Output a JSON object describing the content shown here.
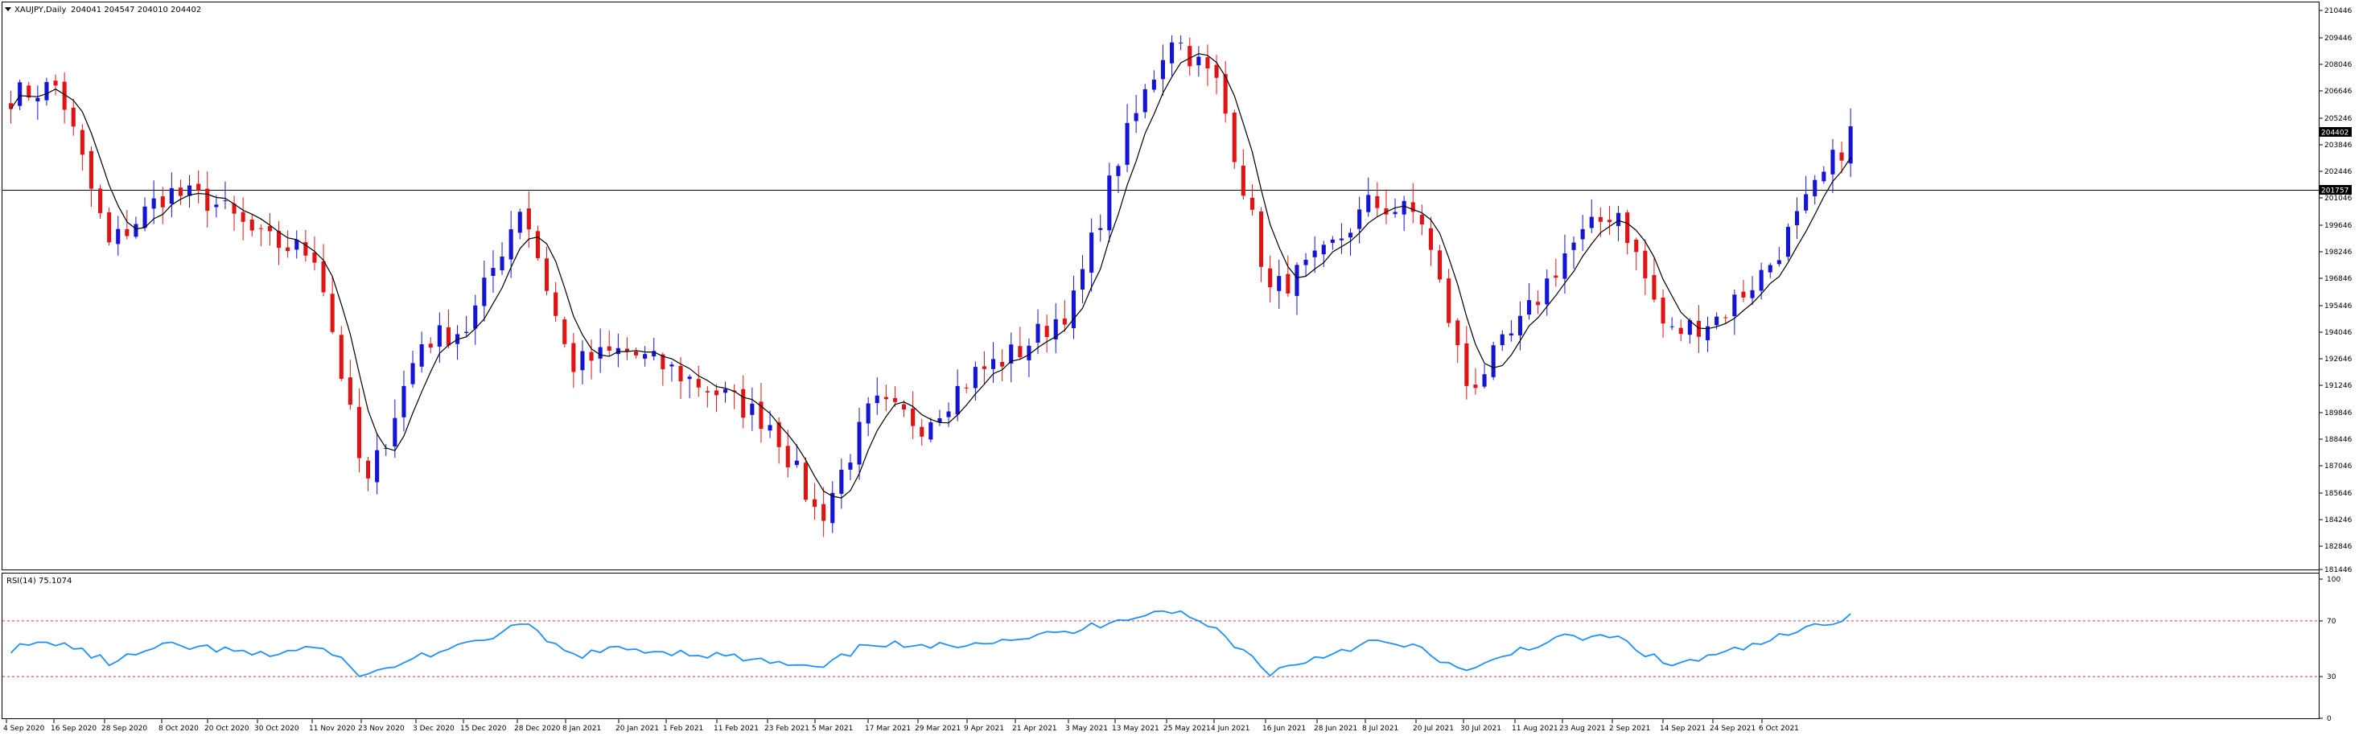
{
  "header": {
    "symbol_label": "XAUJPY,Daily",
    "ohlc_label": "204041 204547 204010 204402"
  },
  "colors": {
    "bull": "#1414d2",
    "bear": "#e01414",
    "ma": "#000000",
    "rsi": "#1e90ff",
    "rsi_levels": "#d23c3c",
    "hline": "#000000",
    "tag_bg": "#000000"
  },
  "price_axis": {
    "labels": [
      "210446",
      "209446",
      "208046",
      "206646",
      "205246",
      "203846",
      "202446",
      "201046",
      "199646",
      "198246",
      "196846",
      "195446",
      "194046",
      "192646",
      "191246",
      "189846",
      "188446",
      "187046",
      "185646",
      "184246",
      "182846",
      "181446"
    ],
    "current_price_tag": "204402",
    "hline_tag": "201757"
  },
  "rsi": {
    "label": "RSI(14) 75.1074",
    "axis_labels": [
      "100",
      "70",
      "30",
      "0"
    ],
    "levels": [
      70,
      30
    ]
  },
  "time_axis": {
    "labels": [
      "4 Sep 2020",
      "16 Sep 2020",
      "28 Sep 2020",
      "8 Oct 2020",
      "20 Oct 2020",
      "30 Oct 2020",
      "11 Nov 2020",
      "23 Nov 2020",
      "3 Dec 2020",
      "15 Dec 2020",
      "28 Dec 2020",
      "8 Jan 2021",
      "20 Jan 2021",
      "1 Feb 2021",
      "11 Feb 2021",
      "23 Feb 2021",
      "5 Mar 2021",
      "17 Mar 2021",
      "29 Mar 2021",
      "9 Apr 2021",
      "21 Apr 2021",
      "3 May 2021",
      "13 May 2021",
      "25 May 2021",
      "4 Jun 2021",
      "16 Jun 2021",
      "28 Jun 2021",
      "8 Jul 2021",
      "20 Jul 2021",
      "30 Jul 2021",
      "11 Aug 2021",
      "23 Aug 2021",
      "2 Sep 2021",
      "14 Sep 2021",
      "24 Sep 2021",
      "6 Oct 2021"
    ]
  },
  "chart_data": {
    "type": "candlestick",
    "title": "XAUJPY,Daily",
    "y_range": [
      181446,
      210446
    ],
    "horizontal_line": 201757,
    "ma_overlay": true,
    "price_keypoints": [
      [
        "4 Sep 2020",
        206000
      ],
      [
        "16 Sep 2020",
        206500
      ],
      [
        "28 Sep 2020",
        198200
      ],
      [
        "8 Oct 2020",
        201000
      ],
      [
        "20 Oct 2020",
        200500
      ],
      [
        "30 Oct 2020",
        198500
      ],
      [
        "11 Nov 2020",
        197800
      ],
      [
        "23 Nov 2020",
        185500
      ],
      [
        "3 Dec 2020",
        193200
      ],
      [
        "15 Dec 2020",
        194000
      ],
      [
        "28 Dec 2020",
        200500
      ],
      [
        "8 Jan 2021",
        192000
      ],
      [
        "20 Jan 2021",
        192800
      ],
      [
        "1 Feb 2021",
        191800
      ],
      [
        "11 Feb 2021",
        190500
      ],
      [
        "23 Feb 2021",
        189000
      ],
      [
        "5 Mar 2021",
        184000
      ],
      [
        "17 Mar 2021",
        190000
      ],
      [
        "29 Mar 2021",
        189000
      ],
      [
        "9 Apr 2021",
        191500
      ],
      [
        "21 Apr 2021",
        192800
      ],
      [
        "3 May 2021",
        195200
      ],
      [
        "13 May 2021",
        203000
      ],
      [
        "25 May 2021",
        209200
      ],
      [
        "4 Jun 2021",
        206500
      ],
      [
        "16 Jun 2021",
        195800
      ],
      [
        "28 Jun 2021",
        197500
      ],
      [
        "8 Jul 2021",
        200400
      ],
      [
        "20 Jul 2021",
        199800
      ],
      [
        "30 Jul 2021",
        190800
      ],
      [
        "11 Aug 2021",
        194000
      ],
      [
        "23 Aug 2021",
        198000
      ],
      [
        "2 Sep 2021",
        200200
      ],
      [
        "14 Sep 2021",
        193600
      ],
      [
        "24 Sep 2021",
        194500
      ],
      [
        "6 Oct 2021",
        197000
      ],
      [
        "end",
        204402
      ]
    ],
    "rsi_keypoints": [
      [
        "4 Sep 2020",
        50
      ],
      [
        "16 Sep 2020",
        55
      ],
      [
        "28 Sep 2020",
        40
      ],
      [
        "8 Oct 2020",
        52
      ],
      [
        "20 Oct 2020",
        50
      ],
      [
        "30 Oct 2020",
        45
      ],
      [
        "11 Nov 2020",
        52
      ],
      [
        "23 Nov 2020",
        30
      ],
      [
        "3 Dec 2020",
        45
      ],
      [
        "15 Dec 2020",
        52
      ],
      [
        "28 Dec 2020",
        68
      ],
      [
        "8 Jan 2021",
        45
      ],
      [
        "20 Jan 2021",
        50
      ],
      [
        "1 Feb 2021",
        48
      ],
      [
        "11 Feb 2021",
        45
      ],
      [
        "23 Feb 2021",
        40
      ],
      [
        "5 Mar 2021",
        35
      ],
      [
        "17 Mar 2021",
        55
      ],
      [
        "29 Mar 2021",
        50
      ],
      [
        "9 Apr 2021",
        55
      ],
      [
        "21 Apr 2021",
        58
      ],
      [
        "3 May 2021",
        62
      ],
      [
        "13 May 2021",
        72
      ],
      [
        "25 May 2021",
        78
      ],
      [
        "4 Jun 2021",
        63
      ],
      [
        "16 Jun 2021",
        33
      ],
      [
        "28 Jun 2021",
        45
      ],
      [
        "8 Jul 2021",
        55
      ],
      [
        "20 Jul 2021",
        50
      ],
      [
        "30 Jul 2021",
        32
      ],
      [
        "11 Aug 2021",
        50
      ],
      [
        "23 Aug 2021",
        58
      ],
      [
        "2 Sep 2021",
        58
      ],
      [
        "14 Sep 2021",
        38
      ],
      [
        "24 Sep 2021",
        45
      ],
      [
        "6 Oct 2021",
        55
      ],
      [
        "end",
        75.1
      ]
    ]
  }
}
